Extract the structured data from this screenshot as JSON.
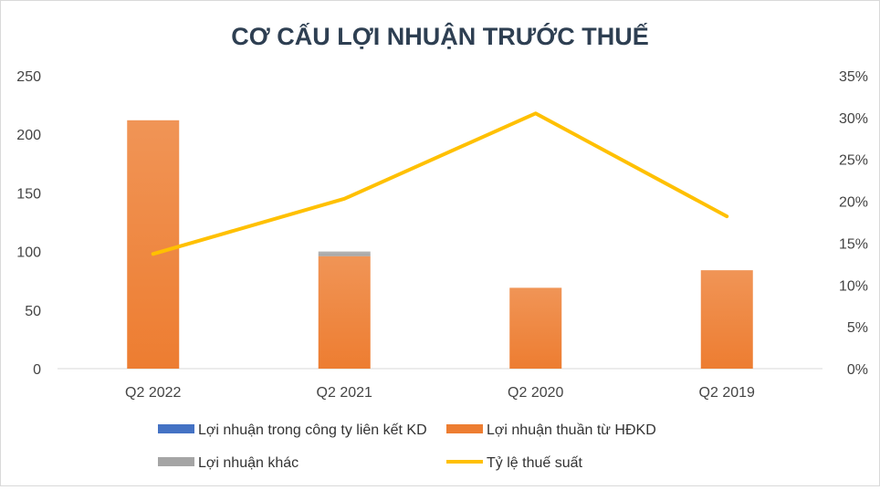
{
  "chart_data": {
    "type": "bar",
    "title": "CƠ CẤU LỢI NHUẬN TRƯỚC THUẾ",
    "categories": [
      "Q2 2022",
      "Q2 2021",
      "Q2 2020",
      "Q2 2019"
    ],
    "ylim": [
      0,
      250
    ],
    "y_ticks": [
      "0",
      "50",
      "100",
      "150",
      "200",
      "250"
    ],
    "y2lim": [
      0,
      0.35
    ],
    "y2_ticks": [
      "0%",
      "5%",
      "10%",
      "15%",
      "20%",
      "25%",
      "30%",
      "35%"
    ],
    "series": [
      {
        "name": "Lợi nhuận trong công ty liên kết KD",
        "type": "bar",
        "stack": "main",
        "color": "#4472c4",
        "values": [
          0,
          0,
          0,
          0
        ]
      },
      {
        "name": "Lợi nhuận thuần từ HĐKD",
        "type": "bar",
        "stack": "main",
        "color": "#ed7d31",
        "values": [
          212,
          96,
          69,
          84
        ]
      },
      {
        "name": "Lợi nhuận khác",
        "type": "bar",
        "stack": "main",
        "color": "#a5a5a5",
        "values": [
          0,
          4,
          0,
          0
        ]
      },
      {
        "name": "Tỷ lệ thuế suất",
        "type": "line",
        "axis": "secondary",
        "color": "#ffc000",
        "values": [
          0.137,
          0.203,
          0.305,
          0.182
        ]
      }
    ],
    "grid": false,
    "legend": "bottom"
  }
}
